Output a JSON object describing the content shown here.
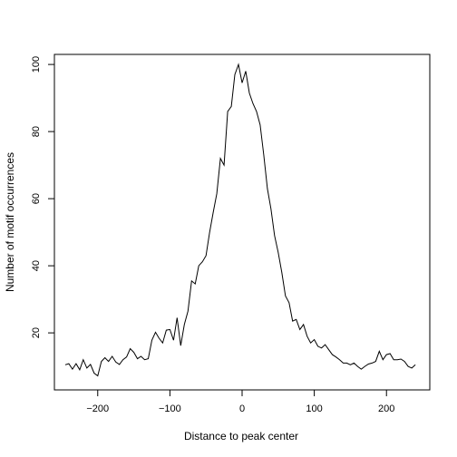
{
  "chart_data": {
    "type": "line",
    "title": "",
    "xlabel": "Distance to peak center",
    "ylabel": "Number of motif occurrences",
    "xlim": [
      -260,
      260
    ],
    "ylim": [
      3,
      103
    ],
    "x_ticks": [
      -200,
      -100,
      0,
      100,
      200
    ],
    "y_ticks": [
      20,
      40,
      60,
      80,
      100
    ],
    "x_tick_labels": [
      "−200",
      "−100",
      "0",
      "100",
      "200"
    ],
    "y_tick_labels": [
      "20",
      "40",
      "60",
      "80",
      "100"
    ],
    "grid": false,
    "legend": "none",
    "line_color": "#000000",
    "series": [
      {
        "x": [
          -245,
          -240,
          -235,
          -230,
          -225,
          -220,
          -215,
          -210,
          -205,
          -200,
          -195,
          -190,
          -185,
          -180,
          -175,
          -170,
          -165,
          -160,
          -155,
          -150,
          -145,
          -140,
          -135,
          -130,
          -125,
          -120,
          -115,
          -110,
          -105,
          -100,
          -95,
          -90,
          -85,
          -80,
          -75,
          -70,
          -65,
          -60,
          -55,
          -50,
          -45,
          -40,
          -35,
          -30,
          -25,
          -20,
          -15,
          -10,
          -5,
          0,
          5,
          10,
          15,
          20,
          25,
          30,
          35,
          40,
          45,
          50,
          55,
          60,
          65,
          70,
          75,
          80,
          85,
          90,
          95,
          100,
          105,
          110,
          115,
          120,
          125,
          130,
          135,
          140,
          145,
          150,
          155,
          160,
          165,
          170,
          175,
          180,
          185,
          190,
          195,
          200,
          205,
          210,
          215,
          220,
          225,
          230,
          235,
          240
        ],
        "y": [
          10.5,
          10.8,
          9.2,
          10.8,
          9,
          12,
          9.5,
          10.6,
          8,
          7.2,
          11.5,
          12.6,
          11.5,
          13,
          11.3,
          10.6,
          12,
          12.8,
          15.3,
          14.2,
          12.3,
          13,
          12,
          12.3,
          17.8,
          20.2,
          18.4,
          17,
          20.8,
          21,
          17.8,
          24.5,
          16.2,
          22.5,
          26.5,
          35.5,
          34.6,
          40,
          41.2,
          43,
          50,
          56,
          61.5,
          72,
          70,
          86,
          87.5,
          97,
          100,
          94.5,
          98,
          91.5,
          88.4,
          86,
          82,
          73,
          63,
          57,
          49,
          44,
          38,
          31,
          29,
          23.5,
          24,
          21,
          22.5,
          19,
          17,
          18,
          16,
          15.5,
          16.5,
          15,
          13.5,
          12.8,
          12,
          11,
          11,
          10.5,
          11,
          10,
          9.2,
          10,
          10.7,
          11,
          11.5,
          14.5,
          12,
          13.5,
          13.8,
          12,
          12,
          12.2,
          11.5,
          10,
          9.5,
          10.5
        ]
      }
    ]
  }
}
